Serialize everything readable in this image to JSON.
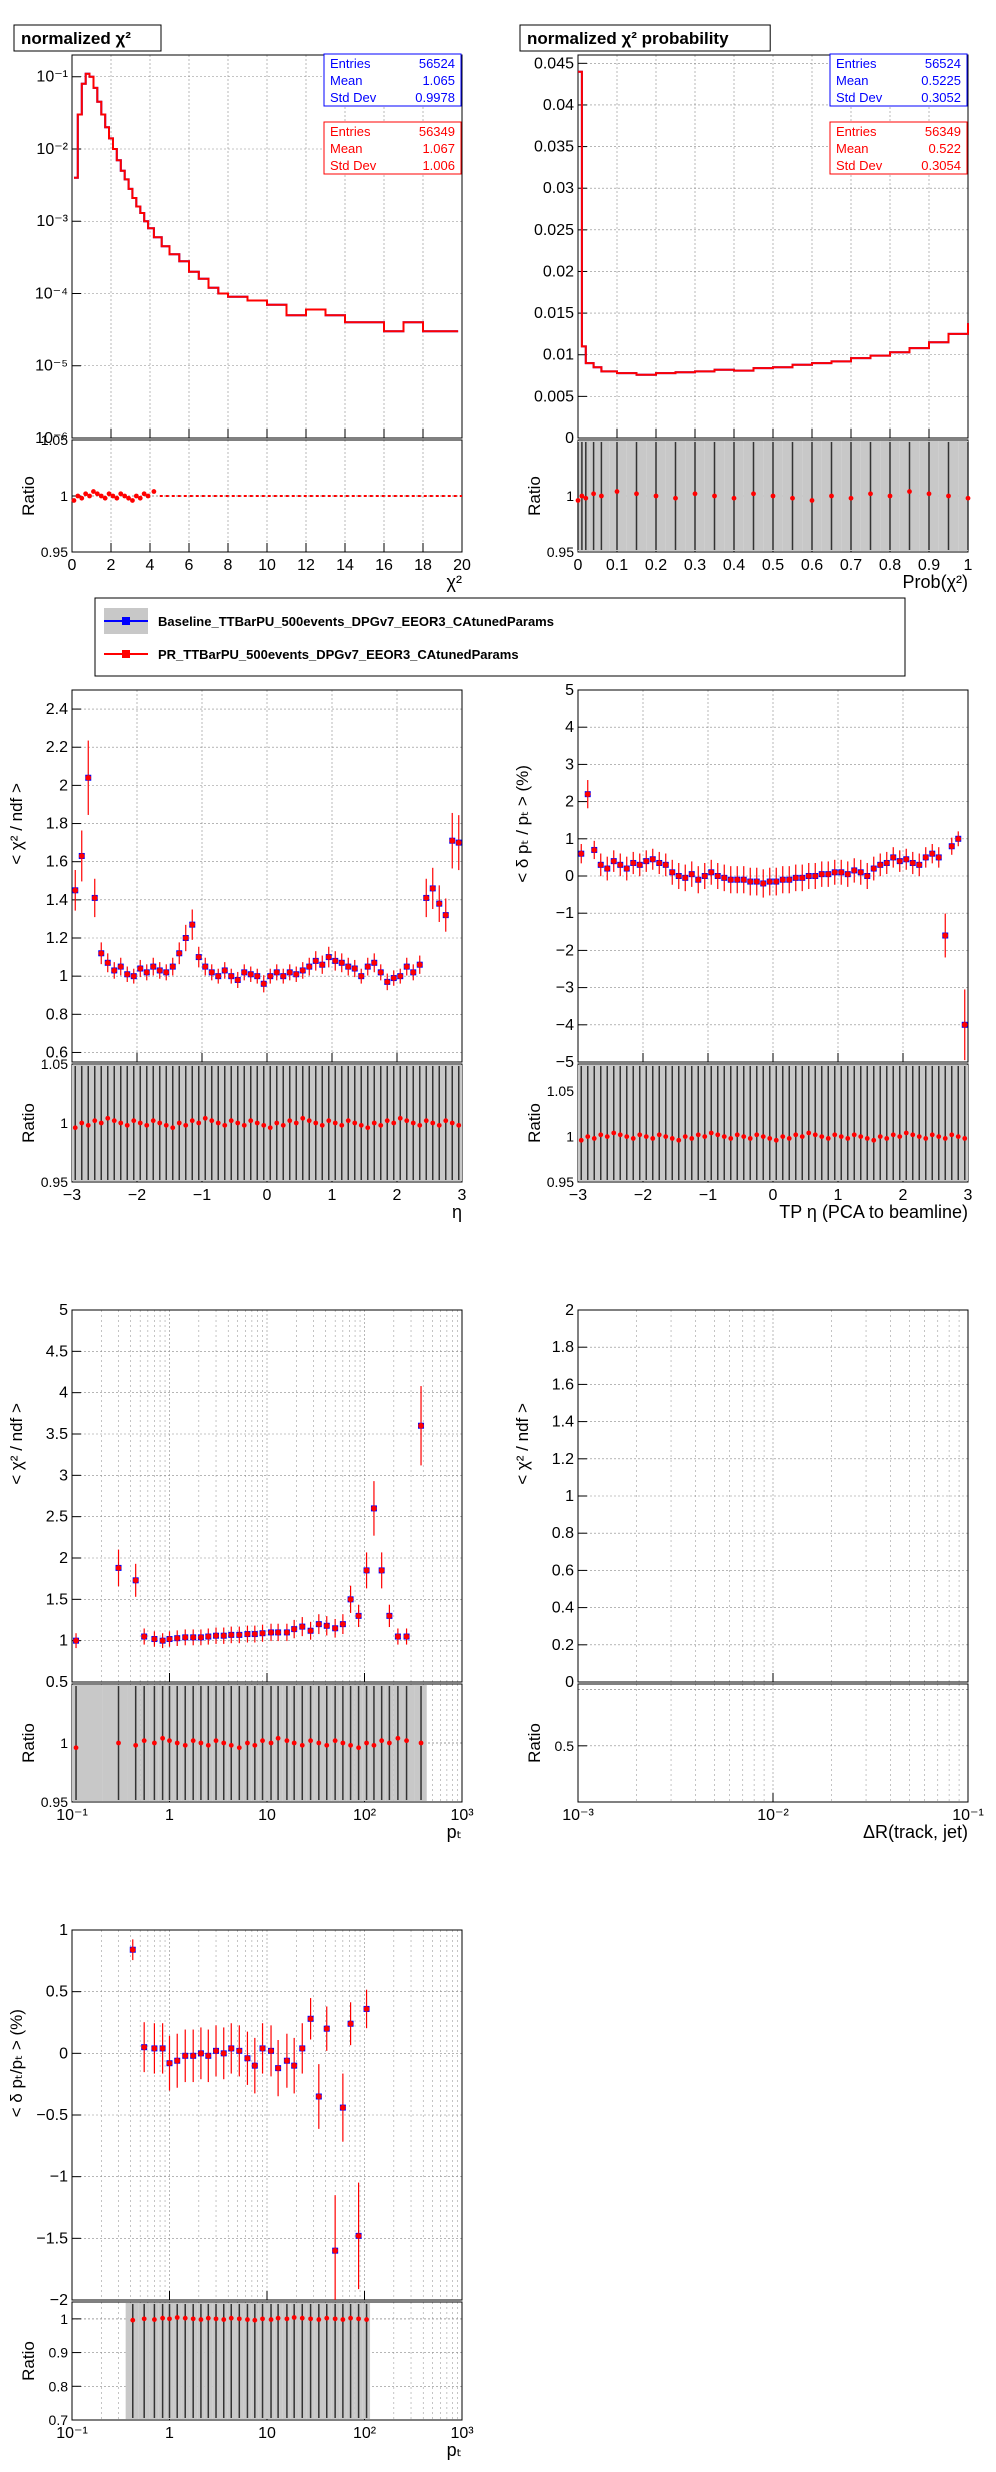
{
  "colors": {
    "baseline": "#0000ff",
    "pr": "#ff0000",
    "band": "#c8c8c8",
    "grid": "#8a8a8a"
  },
  "legend": {
    "baseline": "Baseline_TTBarPU_500events_DPGv7_EEOR3_CAtunedParams",
    "pr": "PR_TTBarPU_500events_DPGv7_EEOR3_CAtunedParams"
  },
  "chart_data": [
    {
      "id": "chi2",
      "type": "line",
      "title": "normalized   χ²",
      "xlabel": "χ²",
      "ylabel": "",
      "ylog": true,
      "xlim": [
        0,
        20
      ],
      "ylim": [
        1e-06,
        0.2
      ],
      "xticks": [
        "0",
        "2",
        "4",
        "6",
        "8",
        "10",
        "12",
        "14",
        "16",
        "18",
        "20"
      ],
      "yticks": [
        "10⁻⁶",
        "10⁻⁵",
        "10⁻⁴",
        "10⁻³",
        "10⁻²",
        "10⁻¹"
      ],
      "stats": [
        {
          "series": "baseline",
          "entries": "56524",
          "mean": "1.065",
          "stddev": "0.9978"
        },
        {
          "series": "pr",
          "entries": "56349",
          "mean": "1.067",
          "stddev": "1.006"
        }
      ],
      "stat_labels": [
        "Entries",
        "Mean",
        "Std Dev"
      ],
      "ratio": {
        "ylabel": "Ratio",
        "ylim": [
          0.95,
          1.05
        ],
        "yticks": [
          "0.95",
          "1",
          "1.05"
        ]
      },
      "x": [
        0.1,
        0.3,
        0.5,
        0.7,
        0.9,
        1.1,
        1.3,
        1.5,
        1.7,
        1.9,
        2.1,
        2.3,
        2.5,
        2.7,
        2.9,
        3.1,
        3.3,
        3.5,
        3.7,
        3.9,
        4.2,
        4.6,
        5.0,
        5.5,
        6.0,
        6.5,
        7.0,
        7.5,
        8.0,
        8.5,
        9.0,
        10.0,
        11.0,
        12.0,
        13.0,
        14.0,
        15.0,
        16.0,
        17.0,
        18.0,
        19.0,
        19.8
      ],
      "values": [
        0.004,
        0.03,
        0.08,
        0.11,
        0.1,
        0.07,
        0.045,
        0.03,
        0.02,
        0.014,
        0.01,
        0.007,
        0.005,
        0.0038,
        0.0028,
        0.0021,
        0.0016,
        0.0013,
        0.001,
        0.0008,
        0.0006,
        0.00045,
        0.00035,
        0.00028,
        0.0002,
        0.00016,
        0.00012,
        0.0001,
        9e-05,
        9e-05,
        8e-05,
        7e-05,
        5e-05,
        6e-05,
        5e-05,
        4e-05,
        4e-05,
        3e-05,
        4e-05,
        3e-05,
        3e-05,
        3e-05
      ]
    },
    {
      "id": "chi2prob",
      "type": "line",
      "title": "normalized   χ² probability",
      "xlabel": "Prob(χ²)",
      "ylabel": "",
      "xlim": [
        0,
        1
      ],
      "ylim": [
        0,
        0.046
      ],
      "xticks": [
        "0",
        "0.1",
        "0.2",
        "0.3",
        "0.4",
        "0.5",
        "0.6",
        "0.7",
        "0.8",
        "0.9",
        "1"
      ],
      "yticks": [
        "0",
        "0.005",
        "0.01",
        "0.015",
        "0.02",
        "0.025",
        "0.03",
        "0.035",
        "0.04",
        "0.045"
      ],
      "stats": [
        {
          "series": "baseline",
          "entries": "56524",
          "mean": "0.5225",
          "stddev": "0.3052"
        },
        {
          "series": "pr",
          "entries": "56349",
          "mean": "0.522",
          "stddev": "0.3054"
        }
      ],
      "stat_labels": [
        "Entries",
        "Mean",
        "Std Dev"
      ],
      "ratio": {
        "ylabel": "Ratio",
        "ylim": [
          0.95,
          1.05
        ],
        "yticks": [
          "0.95",
          "1"
        ]
      },
      "x": [
        0.0,
        0.01,
        0.02,
        0.04,
        0.06,
        0.1,
        0.15,
        0.2,
        0.25,
        0.3,
        0.35,
        0.4,
        0.45,
        0.5,
        0.55,
        0.6,
        0.65,
        0.7,
        0.75,
        0.8,
        0.85,
        0.9,
        0.95,
        1.0
      ],
      "values": [
        0.044,
        0.011,
        0.009,
        0.0085,
        0.008,
        0.0078,
        0.0076,
        0.0078,
        0.0079,
        0.008,
        0.0082,
        0.0081,
        0.0084,
        0.0085,
        0.0088,
        0.009,
        0.0092,
        0.0096,
        0.0099,
        0.0103,
        0.0108,
        0.0115,
        0.0125,
        0.0138
      ]
    },
    {
      "id": "chi2eta",
      "type": "scatter",
      "title": "",
      "xlabel": "η",
      "ylabel": "< χ² / ndf >",
      "xlim": [
        -3,
        3
      ],
      "ylim": [
        0.55,
        2.5
      ],
      "xticks": [
        "−3",
        "−2",
        "−1",
        "0",
        "1",
        "2",
        "3"
      ],
      "yticks": [
        "0.6",
        "0.8",
        "1",
        "1.2",
        "1.4",
        "1.6",
        "1.8",
        "2",
        "2.2",
        "2.4"
      ],
      "ratio": {
        "ylabel": "Ratio",
        "ylim": [
          0.95,
          1.05
        ],
        "yticks": [
          "0.95",
          "1",
          "1.05"
        ]
      },
      "x": [
        -2.95,
        -2.85,
        -2.75,
        -2.65,
        -2.55,
        -2.45,
        -2.35,
        -2.25,
        -2.15,
        -2.05,
        -1.95,
        -1.85,
        -1.75,
        -1.65,
        -1.55,
        -1.45,
        -1.35,
        -1.25,
        -1.15,
        -1.05,
        -0.95,
        -0.85,
        -0.75,
        -0.65,
        -0.55,
        -0.45,
        -0.35,
        -0.25,
        -0.15,
        -0.05,
        0.05,
        0.15,
        0.25,
        0.35,
        0.45,
        0.55,
        0.65,
        0.75,
        0.85,
        0.95,
        1.05,
        1.15,
        1.25,
        1.35,
        1.45,
        1.55,
        1.65,
        1.75,
        1.85,
        1.95,
        2.05,
        2.15,
        2.25,
        2.35,
        2.45,
        2.55,
        2.65,
        2.75,
        2.85,
        2.95
      ],
      "values": [
        1.45,
        1.63,
        2.04,
        1.41,
        1.12,
        1.07,
        1.03,
        1.05,
        1.01,
        1.0,
        1.04,
        1.02,
        1.05,
        1.03,
        1.02,
        1.05,
        1.12,
        1.2,
        1.27,
        1.1,
        1.05,
        1.02,
        1.0,
        1.03,
        1.0,
        0.98,
        1.02,
        1.01,
        1.0,
        0.96,
        1.0,
        1.02,
        1.0,
        1.02,
        1.01,
        1.03,
        1.05,
        1.08,
        1.06,
        1.1,
        1.08,
        1.07,
        1.05,
        1.04,
        1.0,
        1.05,
        1.07,
        1.02,
        0.97,
        0.99,
        1.0,
        1.05,
        1.02,
        1.06,
        1.41,
        1.46,
        1.38,
        1.32,
        1.71,
        1.7
      ]
    },
    {
      "id": "dpteta",
      "type": "scatter",
      "title": "",
      "xlabel": "TP   η (PCA to beamline)",
      "ylabel": "< δ pₜ / pₜ > (%)",
      "xlim": [
        -3,
        3
      ],
      "ylim": [
        -5,
        5
      ],
      "xticks": [
        "−3",
        "−2",
        "−1",
        "0",
        "1",
        "2",
        "3"
      ],
      "yticks": [
        "−5",
        "−4",
        "−3",
        "−2",
        "−1",
        "0",
        "1",
        "2",
        "3",
        "4",
        "5"
      ],
      "ratio": {
        "ylabel": "Ratio",
        "ylim": [
          0.95,
          1.08
        ],
        "yticks": [
          "0.95",
          "1",
          "1.05"
        ]
      },
      "x": [
        -2.95,
        -2.85,
        -2.75,
        -2.65,
        -2.55,
        -2.45,
        -2.35,
        -2.25,
        -2.15,
        -2.05,
        -1.95,
        -1.85,
        -1.75,
        -1.65,
        -1.55,
        -1.45,
        -1.35,
        -1.25,
        -1.15,
        -1.05,
        -0.95,
        -0.85,
        -0.75,
        -0.65,
        -0.55,
        -0.45,
        -0.35,
        -0.25,
        -0.15,
        -0.05,
        0.05,
        0.15,
        0.25,
        0.35,
        0.45,
        0.55,
        0.65,
        0.75,
        0.85,
        0.95,
        1.05,
        1.15,
        1.25,
        1.35,
        1.45,
        1.55,
        1.65,
        1.75,
        1.85,
        1.95,
        2.05,
        2.15,
        2.25,
        2.35,
        2.45,
        2.55,
        2.65,
        2.75,
        2.85,
        2.95
      ],
      "values": [
        0.6,
        2.2,
        0.7,
        0.3,
        0.2,
        0.4,
        0.3,
        0.2,
        0.35,
        0.3,
        0.4,
        0.45,
        0.35,
        0.3,
        0.1,
        0.0,
        -0.05,
        0.05,
        -0.1,
        0.0,
        0.1,
        0.0,
        -0.05,
        -0.1,
        -0.1,
        -0.1,
        -0.15,
        -0.15,
        -0.2,
        -0.15,
        -0.15,
        -0.1,
        -0.1,
        -0.05,
        -0.05,
        0.0,
        0.0,
        0.05,
        0.05,
        0.1,
        0.1,
        0.05,
        0.15,
        0.1,
        0.0,
        0.2,
        0.3,
        0.35,
        0.5,
        0.4,
        0.45,
        0.35,
        0.3,
        0.5,
        0.6,
        0.5,
        -1.6,
        0.8,
        1.0,
        -4.0
      ]
    },
    {
      "id": "chi2pt",
      "type": "scatter",
      "title": "",
      "xlabel": "pₜ",
      "ylabel": "< χ² / ndf >",
      "xlog": true,
      "xlim": [
        0.1,
        1000
      ],
      "ylim": [
        0.5,
        5
      ],
      "xticks": [
        "10⁻¹",
        "1",
        "10",
        "10²",
        "10³"
      ],
      "yticks": [
        "0.5",
        "1",
        "1.5",
        "2",
        "2.5",
        "3",
        "3.5",
        "4",
        "4.5",
        "5"
      ],
      "ratio": {
        "ylabel": "Ratio",
        "ylim": [
          0.95,
          1.05
        ],
        "yticks": [
          "0.95",
          "1"
        ]
      },
      "x": [
        0.11,
        0.3,
        0.45,
        0.55,
        0.7,
        0.85,
        1.0,
        1.2,
        1.45,
        1.75,
        2.1,
        2.5,
        3.0,
        3.6,
        4.3,
        5.2,
        6.3,
        7.5,
        9,
        11,
        13,
        16,
        19,
        23,
        28,
        34,
        41,
        50,
        60,
        72,
        87,
        105,
        125,
        150,
        180,
        220,
        270,
        380
      ],
      "values": [
        1.0,
        1.88,
        1.73,
        1.05,
        1.02,
        1.0,
        1.02,
        1.03,
        1.04,
        1.04,
        1.04,
        1.05,
        1.06,
        1.06,
        1.07,
        1.07,
        1.08,
        1.08,
        1.09,
        1.1,
        1.1,
        1.1,
        1.14,
        1.17,
        1.12,
        1.2,
        1.18,
        1.15,
        1.2,
        1.5,
        1.3,
        1.85,
        2.6,
        1.85,
        1.3,
        1.05,
        1.05,
        3.6
      ]
    },
    {
      "id": "chi2dr",
      "type": "scatter",
      "title": "",
      "xlabel": "ΔR(track, jet)",
      "ylabel": "< χ² / ndf >",
      "xlog": true,
      "xlim": [
        0.001,
        0.1
      ],
      "ylim": [
        0,
        2
      ],
      "xticks": [
        "10⁻³",
        "10⁻²",
        "10⁻¹"
      ],
      "yticks": [
        "0",
        "0.2",
        "0.4",
        "0.6",
        "0.8",
        "1",
        "1.2",
        "1.4",
        "1.6",
        "1.8",
        "2"
      ],
      "ratio": {
        "ylabel": "Ratio",
        "ylim": [
          0,
          1.05
        ],
        "yticks": [
          "0.5"
        ]
      },
      "x": [],
      "values": []
    },
    {
      "id": "dptpt",
      "type": "scatter",
      "title": "",
      "xlabel": "pₜ",
      "ylabel": "< δ pₜ/pₜ > (%)",
      "xlog": true,
      "xlim": [
        0.1,
        1000
      ],
      "ylim": [
        -2,
        1
      ],
      "xticks": [
        "10⁻¹",
        "1",
        "10",
        "10²",
        "10³"
      ],
      "yticks": [
        "−2",
        "−1.5",
        "−1",
        "−0.5",
        "0",
        "0.5",
        "1"
      ],
      "ratio": {
        "ylabel": "Ratio",
        "ylim": [
          0.7,
          1.05
        ],
        "yticks": [
          "0.7",
          "0.8",
          "0.9",
          "1"
        ]
      },
      "x": [
        0.42,
        0.55,
        0.7,
        0.85,
        1.0,
        1.2,
        1.45,
        1.75,
        2.1,
        2.5,
        3.0,
        3.6,
        4.3,
        5.2,
        6.3,
        7.5,
        9,
        11,
        13,
        16,
        19,
        23,
        28,
        34,
        41,
        50,
        60,
        72,
        87,
        105
      ],
      "values": [
        0.84,
        0.05,
        0.04,
        0.04,
        -0.08,
        -0.06,
        -0.02,
        -0.02,
        0.0,
        -0.02,
        0.02,
        0.0,
        0.04,
        0.02,
        -0.04,
        -0.1,
        0.04,
        0.02,
        -0.12,
        -0.06,
        -0.1,
        0.04,
        0.28,
        -0.35,
        0.2,
        -1.6,
        -0.44,
        0.24,
        -1.48,
        0.36
      ]
    }
  ]
}
